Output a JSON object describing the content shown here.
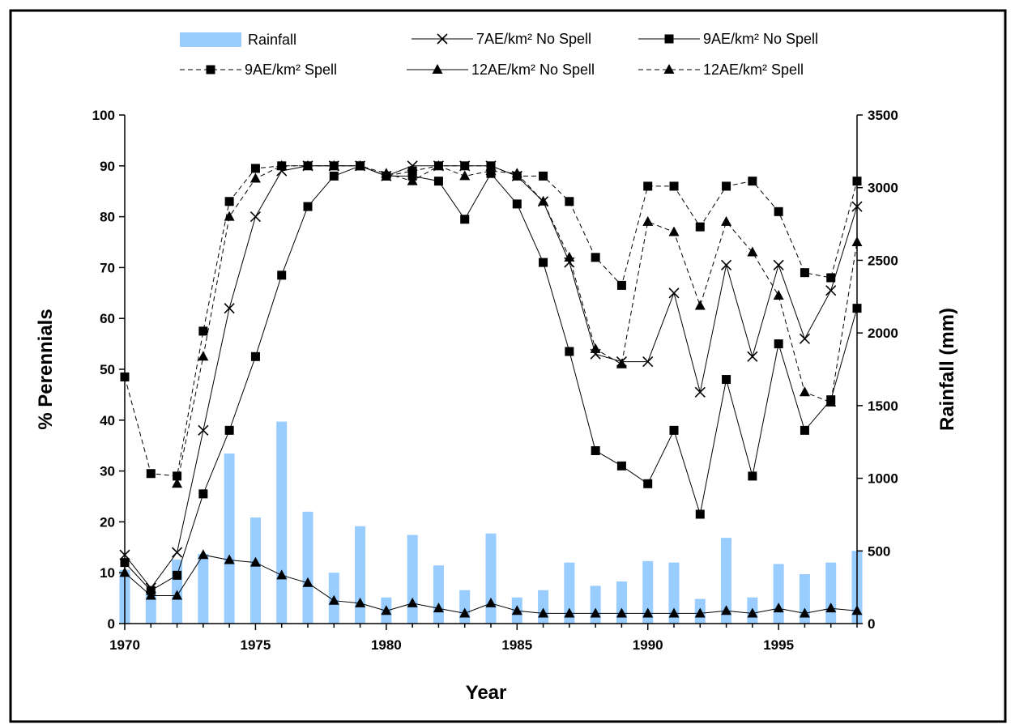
{
  "chart_data": {
    "type": "bar+line",
    "title": "",
    "xlabel": "Year",
    "ylabel_left": "% Perennials",
    "ylabel_right": "Rainfall (mm)",
    "xlim": [
      1970,
      1998
    ],
    "ylim_left": [
      0,
      100
    ],
    "ylim_right": [
      0,
      3500
    ],
    "x_ticks": [
      "1970",
      "1975",
      "1980",
      "1985",
      "1990",
      "1995"
    ],
    "y_ticks_left": [
      "0",
      "10",
      "20",
      "30",
      "40",
      "50",
      "60",
      "70",
      "80",
      "90",
      "100"
    ],
    "y_ticks_right": [
      "0",
      "500",
      "1000",
      "1500",
      "2000",
      "2500",
      "3000",
      "3500"
    ],
    "grid": false,
    "legend_position": "top",
    "years": [
      1970,
      1971,
      1972,
      1973,
      1974,
      1975,
      1976,
      1977,
      1978,
      1979,
      1980,
      1981,
      1982,
      1983,
      1984,
      1985,
      1986,
      1987,
      1988,
      1989,
      1990,
      1991,
      1992,
      1993,
      1994,
      1995,
      1996,
      1997,
      1998
    ],
    "bar_series": {
      "name": "Rainfall",
      "color": "#99ccff",
      "axis": "right",
      "values": [
        370,
        210,
        440,
        480,
        1170,
        730,
        1390,
        770,
        350,
        670,
        180,
        610,
        400,
        230,
        620,
        180,
        230,
        420,
        260,
        290,
        430,
        420,
        170,
        590,
        180,
        410,
        340,
        420,
        500
      ]
    },
    "series": [
      {
        "name": "7AE/km² No Spell",
        "marker": "x",
        "dash": "solid",
        "values": [
          13.5,
          7,
          14,
          38,
          62,
          80,
          89,
          90,
          90,
          90,
          88,
          90,
          90,
          90,
          90,
          88,
          83,
          71,
          53,
          51.5,
          51.5,
          65,
          45.5,
          70.5,
          52.5,
          70.5,
          56,
          65.5,
          82
        ]
      },
      {
        "name": "9AE/km² No Spell",
        "marker": "square",
        "dash": "solid",
        "values": [
          12,
          6.5,
          9.5,
          25.5,
          38,
          52.5,
          68.5,
          82,
          88,
          90,
          88,
          88,
          87,
          79.5,
          88.5,
          82.5,
          71,
          53.5,
          34,
          31,
          27.5,
          38,
          21.5,
          48,
          29,
          55,
          38,
          44,
          62
        ]
      },
      {
        "name": "9AE/km² Spell",
        "marker": "square",
        "dash": "dashed",
        "values": [
          48.5,
          29.5,
          29,
          57.5,
          83,
          89.5,
          90,
          90,
          90,
          90,
          88,
          89,
          90,
          90,
          90,
          88,
          88,
          83,
          72,
          66.5,
          86,
          86,
          78,
          86,
          87,
          81,
          69,
          68,
          87
        ]
      },
      {
        "name": "12AE/km² No Spell",
        "marker": "triangle",
        "dash": "solid",
        "values": [
          10,
          5.5,
          5.5,
          13.5,
          12.5,
          12,
          9.5,
          8,
          4.5,
          4,
          2.5,
          4,
          3,
          2,
          4,
          2.5,
          2,
          2,
          2,
          2,
          2,
          2,
          2,
          2.5,
          2,
          3,
          2,
          3,
          2.5
        ]
      },
      {
        "name": "12AE/km² Spell",
        "marker": "triangle",
        "dash": "dashed",
        "values": [
          null,
          null,
          27.5,
          52.5,
          80,
          87.5,
          90,
          90,
          90,
          90,
          88.5,
          87,
          90,
          88,
          89,
          88.5,
          83,
          72,
          54,
          51,
          79,
          77,
          62.5,
          79,
          73,
          64.5,
          45.5,
          43.5,
          75
        ]
      }
    ]
  }
}
